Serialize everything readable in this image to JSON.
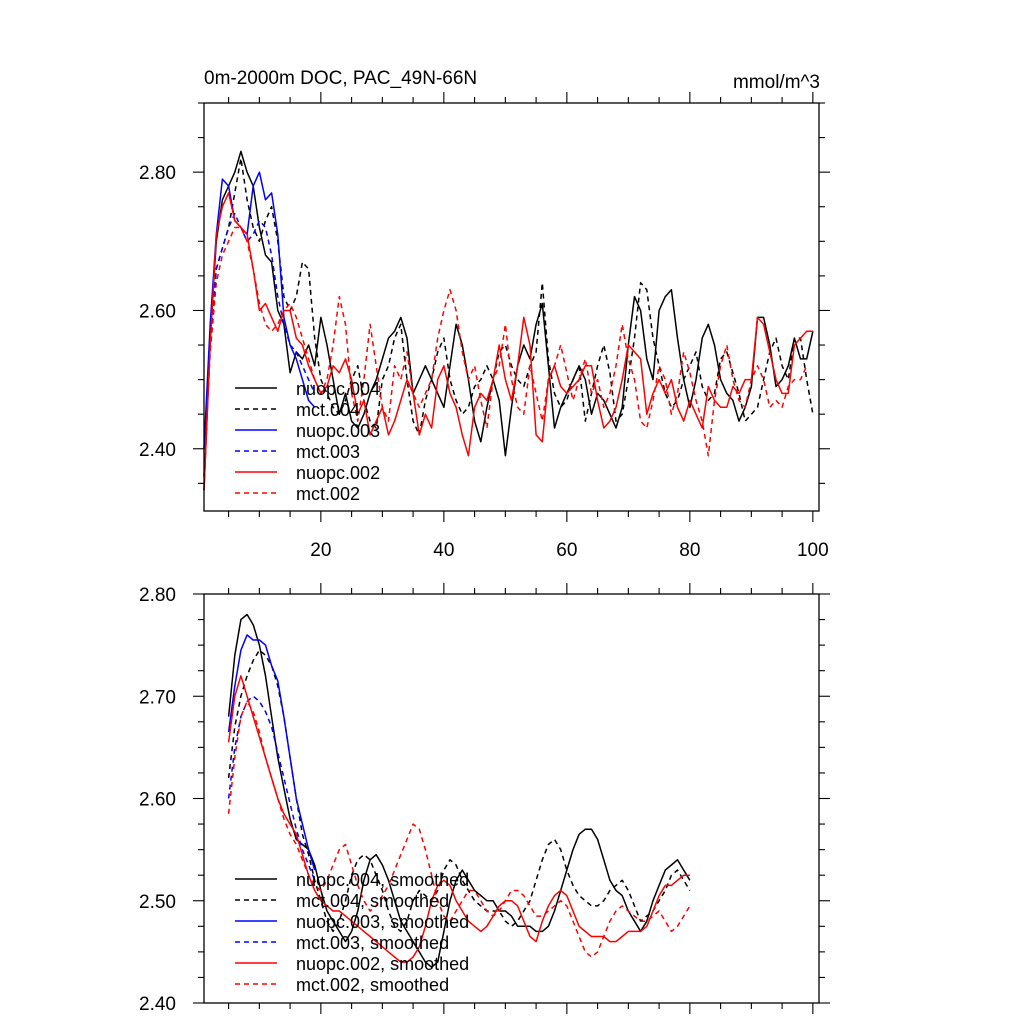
{
  "colors": {
    "black": "#000000",
    "blue": "#0000ff",
    "red": "#ff0000"
  },
  "chart_data": [
    {
      "type": "line",
      "title": "0m-2000m DOC, PAC_49N-66N",
      "units": "mmol/m^3",
      "xlim": [
        1,
        101
      ],
      "ylim": [
        2.31,
        2.9
      ],
      "xticks": [
        20,
        40,
        60,
        80,
        100
      ],
      "xtick_labels": [
        "20",
        "40",
        "60",
        "80",
        "100"
      ],
      "yticks": [
        2.4,
        2.6,
        2.8
      ],
      "ytick_labels": [
        "2.40",
        "2.60",
        "2.80"
      ],
      "legend_position": "lower-left",
      "series": [
        {
          "name": "nuopc.004",
          "color": "#000000",
          "dash": "solid",
          "x_start": 1,
          "values": [
            2.34,
            2.56,
            2.7,
            2.76,
            2.78,
            2.8,
            2.83,
            2.8,
            2.78,
            2.72,
            2.68,
            2.67,
            2.6,
            2.58,
            2.51,
            2.54,
            2.53,
            2.55,
            2.52,
            2.59,
            2.55,
            2.5,
            2.45,
            2.48,
            2.44,
            2.43,
            2.45,
            2.48,
            2.5,
            2.53,
            2.56,
            2.57,
            2.59,
            2.56,
            2.48,
            2.5,
            2.52,
            2.5,
            2.48,
            2.46,
            2.52,
            2.58,
            2.55,
            2.5,
            2.44,
            2.41,
            2.46,
            2.5,
            2.47,
            2.39,
            2.46,
            2.52,
            2.55,
            2.53,
            2.58,
            2.61,
            2.52,
            2.43,
            2.46,
            2.48,
            2.5,
            2.52,
            2.5,
            2.45,
            2.48,
            2.47,
            2.45,
            2.43,
            2.46,
            2.55,
            2.62,
            2.6,
            2.53,
            2.5,
            2.6,
            2.62,
            2.63,
            2.56,
            2.5,
            2.46,
            2.5,
            2.56,
            2.58,
            2.55,
            2.5,
            2.48,
            2.47,
            2.44,
            2.46,
            2.49,
            2.59,
            2.59,
            2.55,
            2.49,
            2.5,
            2.52,
            2.56,
            2.53,
            2.53,
            2.57
          ]
        },
        {
          "name": "mct.004",
          "color": "#000000",
          "dash": "dash",
          "x_start": 1,
          "values": [
            2.36,
            2.55,
            2.66,
            2.69,
            2.72,
            2.77,
            2.82,
            2.76,
            2.72,
            2.7,
            2.73,
            2.75,
            2.7,
            2.62,
            2.6,
            2.62,
            2.67,
            2.66,
            2.56,
            2.5,
            2.48,
            2.46,
            2.45,
            2.47,
            2.5,
            2.52,
            2.47,
            2.44,
            2.43,
            2.5,
            2.52,
            2.56,
            2.58,
            2.5,
            2.44,
            2.42,
            2.47,
            2.5,
            2.54,
            2.56,
            2.5,
            2.47,
            2.45,
            2.46,
            2.49,
            2.5,
            2.52,
            2.5,
            2.54,
            2.55,
            2.52,
            2.5,
            2.49,
            2.52,
            2.54,
            2.64,
            2.53,
            2.48,
            2.46,
            2.47,
            2.5,
            2.52,
            2.44,
            2.48,
            2.52,
            2.55,
            2.51,
            2.44,
            2.45,
            2.5,
            2.56,
            2.64,
            2.63,
            2.56,
            2.52,
            2.48,
            2.46,
            2.47,
            2.5,
            2.52,
            2.54,
            2.49,
            2.47,
            2.48,
            2.53,
            2.54,
            2.51,
            2.48,
            2.44,
            2.45,
            2.46,
            2.5,
            2.54,
            2.56,
            2.52,
            2.5,
            2.56,
            2.56,
            2.5,
            2.45
          ]
        },
        {
          "name": "nuopc.003",
          "color": "#0000ff",
          "dash": "solid",
          "x_start": 1,
          "values": [
            2.4,
            2.58,
            2.71,
            2.79,
            2.78,
            2.73,
            2.72,
            2.71,
            2.78,
            2.8,
            2.76,
            2.77,
            2.71,
            2.59,
            2.55,
            2.53,
            2.5,
            2.47,
            2.46
          ]
        },
        {
          "name": "mct.003",
          "color": "#0000ff",
          "dash": "dash",
          "x_start": 1,
          "values": [
            2.4,
            2.55,
            2.66,
            2.69,
            2.72,
            2.74,
            2.72,
            2.7,
            2.71,
            2.73,
            2.72,
            2.68,
            2.62,
            2.58,
            2.55,
            2.54,
            2.52,
            2.5,
            2.48
          ]
        },
        {
          "name": "nuopc.002",
          "color": "#ff0000",
          "dash": "solid",
          "x_start": 1,
          "values": [
            2.34,
            2.55,
            2.71,
            2.75,
            2.77,
            2.73,
            2.72,
            2.71,
            2.66,
            2.6,
            2.61,
            2.59,
            2.57,
            2.6,
            2.6,
            2.56,
            2.55,
            2.52,
            2.5,
            2.48,
            2.49,
            2.52,
            2.51,
            2.53,
            2.5,
            2.45,
            2.47,
            2.42,
            2.44,
            2.46,
            2.42,
            2.44,
            2.47,
            2.5,
            2.48,
            2.42,
            2.45,
            2.43,
            2.5,
            2.52,
            2.48,
            2.46,
            2.42,
            2.39,
            2.46,
            2.48,
            2.47,
            2.5,
            2.55,
            2.5,
            2.47,
            2.52,
            2.59,
            2.55,
            2.42,
            2.41,
            2.5,
            2.52,
            2.49,
            2.48,
            2.49,
            2.5,
            2.52,
            2.52,
            2.47,
            2.43,
            2.44,
            2.46,
            2.5,
            2.55,
            2.54,
            2.53,
            2.45,
            2.48,
            2.5,
            2.48,
            2.5,
            2.46,
            2.44,
            2.47,
            2.45,
            2.43,
            2.49,
            2.47,
            2.46,
            2.46,
            2.49,
            2.48,
            2.5,
            2.5,
            2.59,
            2.58,
            2.54,
            2.5,
            2.48,
            2.48,
            2.55,
            2.56,
            2.57,
            2.57
          ]
        },
        {
          "name": "mct.002",
          "color": "#ff0000",
          "dash": "dash",
          "x_start": 1,
          "values": [
            2.36,
            2.54,
            2.64,
            2.68,
            2.7,
            2.72,
            2.72,
            2.7,
            2.66,
            2.61,
            2.58,
            2.57,
            2.58,
            2.6,
            2.61,
            2.59,
            2.56,
            2.53,
            2.5,
            2.48,
            2.5,
            2.55,
            2.62,
            2.58,
            2.48,
            2.44,
            2.5,
            2.58,
            2.52,
            2.46,
            2.44,
            2.52,
            2.5,
            2.54,
            2.48,
            2.46,
            2.48,
            2.5,
            2.56,
            2.6,
            2.63,
            2.6,
            2.54,
            2.5,
            2.52,
            2.47,
            2.43,
            2.5,
            2.52,
            2.58,
            2.5,
            2.46,
            2.45,
            2.52,
            2.48,
            2.44,
            2.5,
            2.52,
            2.55,
            2.51,
            2.47,
            2.5,
            2.53,
            2.48,
            2.5,
            2.46,
            2.48,
            2.52,
            2.58,
            2.53,
            2.5,
            2.44,
            2.43,
            2.47,
            2.52,
            2.5,
            2.45,
            2.48,
            2.54,
            2.51,
            2.47,
            2.44,
            2.39,
            2.47,
            2.52,
            2.55,
            2.5,
            2.47,
            2.46,
            2.5,
            2.52,
            2.5,
            2.46,
            2.47,
            2.46,
            2.49,
            2.5,
            2.5,
            2.52
          ]
        }
      ]
    },
    {
      "type": "line",
      "title": "",
      "xlim": [
        1,
        101
      ],
      "ylim": [
        2.4,
        2.8
      ],
      "xticks": [
        20,
        40,
        60,
        80,
        100
      ],
      "xtick_labels": [],
      "yticks": [
        2.4,
        2.5,
        2.6,
        2.7,
        2.8
      ],
      "ytick_labels": [
        "2.40",
        "2.50",
        "2.60",
        "2.70",
        "2.80"
      ],
      "legend_position": "lower-left",
      "series": [
        {
          "name": "nuopc.004, smoothed",
          "color": "#000000",
          "dash": "solid",
          "x_start": 5,
          "values": [
            2.68,
            2.74,
            2.775,
            2.78,
            2.77,
            2.75,
            2.72,
            2.68,
            2.64,
            2.61,
            2.58,
            2.56,
            2.555,
            2.55,
            2.535,
            2.51,
            2.49,
            2.48,
            2.47,
            2.46,
            2.47,
            2.49,
            2.52,
            2.54,
            2.545,
            2.535,
            2.52,
            2.5,
            2.48,
            2.47,
            2.46,
            2.45,
            2.44,
            2.435,
            2.44,
            2.47,
            2.5,
            2.52,
            2.53,
            2.52,
            2.51,
            2.505,
            2.5,
            2.5,
            2.49,
            2.49,
            2.485,
            2.475,
            2.475,
            2.475,
            2.47,
            2.47,
            2.475,
            2.49,
            2.51,
            2.53,
            2.55,
            2.565,
            2.57,
            2.57,
            2.56,
            2.54,
            2.52,
            2.51,
            2.505,
            2.49,
            2.48,
            2.47,
            2.48,
            2.5,
            2.515,
            2.53,
            2.535,
            2.54,
            2.53,
            2.52
          ]
        },
        {
          "name": "mct.004, smoothed",
          "color": "#000000",
          "dash": "dash",
          "x_start": 5,
          "values": [
            2.62,
            2.67,
            2.7,
            2.72,
            2.735,
            2.745,
            2.74,
            2.73,
            2.71,
            2.68,
            2.64,
            2.6,
            2.565,
            2.545,
            2.52,
            2.5,
            2.48,
            2.47,
            2.48,
            2.5,
            2.525,
            2.54,
            2.545,
            2.54,
            2.525,
            2.51,
            2.49,
            2.475,
            2.47,
            2.48,
            2.5,
            2.51,
            2.505,
            2.5,
            2.51,
            2.53,
            2.54,
            2.535,
            2.52,
            2.51,
            2.5,
            2.495,
            2.49,
            2.49,
            2.49,
            2.48,
            2.475,
            2.48,
            2.49,
            2.5,
            2.52,
            2.54,
            2.555,
            2.56,
            2.55,
            2.53,
            2.515,
            2.505,
            2.5,
            2.495,
            2.495,
            2.5,
            2.51,
            2.515,
            2.52,
            2.51,
            2.495,
            2.48,
            2.485,
            2.49,
            2.5,
            2.51,
            2.525,
            2.53,
            2.52,
            2.51
          ]
        },
        {
          "name": "nuopc.003, smoothed",
          "color": "#0000ff",
          "dash": "solid",
          "x_start": 5,
          "values": [
            2.665,
            2.71,
            2.745,
            2.76,
            2.755,
            2.755,
            2.75,
            2.73,
            2.715,
            2.68,
            2.64,
            2.6,
            2.575,
            2.55,
            2.53
          ]
        },
        {
          "name": "mct.003, smoothed",
          "color": "#0000ff",
          "dash": "dash",
          "x_start": 5,
          "values": [
            2.6,
            2.65,
            2.68,
            2.695,
            2.7,
            2.695,
            2.685,
            2.67,
            2.645,
            2.62,
            2.595,
            2.57,
            2.55,
            2.535,
            2.52
          ]
        },
        {
          "name": "nuopc.002, smoothed",
          "color": "#ff0000",
          "dash": "solid",
          "x_start": 5,
          "values": [
            2.655,
            2.7,
            2.72,
            2.7,
            2.68,
            2.66,
            2.64,
            2.62,
            2.6,
            2.585,
            2.575,
            2.565,
            2.545,
            2.525,
            2.51,
            2.5,
            2.495,
            2.49,
            2.49,
            2.485,
            2.48,
            2.475,
            2.47,
            2.465,
            2.46,
            2.455,
            2.45,
            2.445,
            2.44,
            2.44,
            2.445,
            2.455,
            2.475,
            2.5,
            2.515,
            2.52,
            2.515,
            2.5,
            2.49,
            2.48,
            2.475,
            2.47,
            2.475,
            2.485,
            2.495,
            2.5,
            2.5,
            2.495,
            2.48,
            2.465,
            2.46,
            2.48,
            2.495,
            2.505,
            2.51,
            2.505,
            2.49,
            2.475,
            2.47,
            2.465,
            2.465,
            2.465,
            2.46,
            2.46,
            2.465,
            2.47,
            2.47,
            2.47,
            2.475,
            2.49,
            2.505,
            2.515,
            2.515,
            2.52,
            2.525,
            2.525
          ]
        },
        {
          "name": "mct.002, smoothed",
          "color": "#ff0000",
          "dash": "dash",
          "x_start": 5,
          "values": [
            2.585,
            2.64,
            2.68,
            2.695,
            2.685,
            2.665,
            2.64,
            2.62,
            2.6,
            2.58,
            2.565,
            2.555,
            2.54,
            2.525,
            2.515,
            2.51,
            2.52,
            2.535,
            2.55,
            2.555,
            2.535,
            2.515,
            2.5,
            2.49,
            2.495,
            2.505,
            2.515,
            2.53,
            2.545,
            2.56,
            2.575,
            2.57,
            2.55,
            2.525,
            2.5,
            2.485,
            2.48,
            2.49,
            2.5,
            2.51,
            2.51,
            2.5,
            2.49,
            2.485,
            2.49,
            2.5,
            2.51,
            2.51,
            2.505,
            2.495,
            2.485,
            2.485,
            2.49,
            2.495,
            2.5,
            2.495,
            2.48,
            2.465,
            2.45,
            2.445,
            2.45,
            2.465,
            2.48,
            2.49,
            2.495,
            2.49,
            2.485,
            2.48,
            2.48,
            2.485,
            2.49,
            2.48,
            2.47,
            2.475,
            2.485,
            2.495
          ]
        }
      ]
    }
  ]
}
